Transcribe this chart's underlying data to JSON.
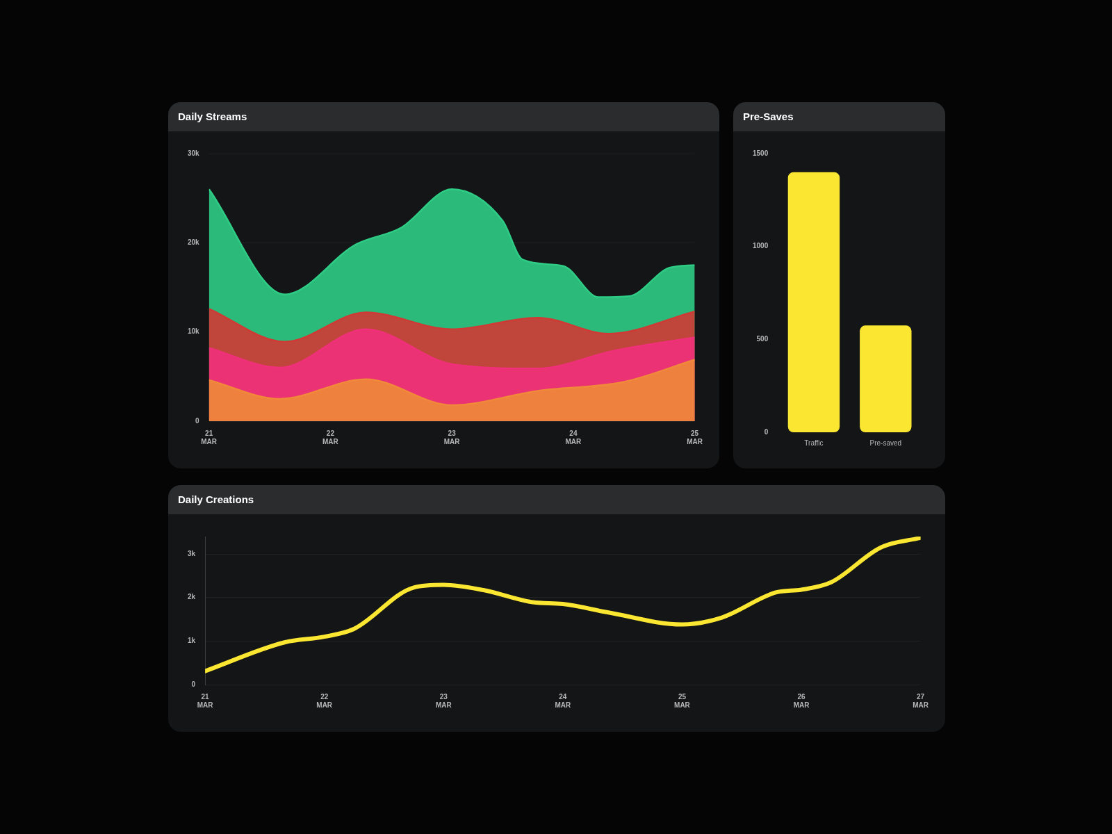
{
  "chart_data": [
    {
      "type": "area",
      "title": "Daily Streams",
      "xlim": [
        "--03-21",
        "--03-25"
      ],
      "xticks": [
        {
          "value": "--03-21",
          "label": "21 MAR"
        },
        {
          "value": "--03-22",
          "label": "22 MAR"
        },
        {
          "value": "--03-23",
          "label": "23 MAR"
        },
        {
          "value": "--03-24",
          "label": "24 MAR"
        },
        {
          "value": "--03-25",
          "label": "25 MAR"
        }
      ],
      "ylim": [
        0,
        30000
      ],
      "yticks": [
        {
          "value": 0,
          "label": "0"
        },
        {
          "value": 10000,
          "label": "10k"
        },
        {
          "value": 20000,
          "label": "20k"
        },
        {
          "value": 30000,
          "label": "30k"
        }
      ],
      "grid": "y",
      "legend": false,
      "series": [
        {
          "color": "#2ecc85",
          "x": [
            "--03-21",
            "--03-21T15:00",
            "--03-22T05:00",
            "--03-22T14:00",
            "--03-23",
            "--03-23T10:00",
            "--03-23T14:00",
            "--03-23T22:00",
            "--03-24T05:00",
            "--03-24T11:00",
            "--03-24T19:00",
            "--03-25"
          ],
          "values": [
            26000,
            14200,
            19800,
            21700,
            26000,
            22500,
            18100,
            17400,
            13900,
            14000,
            17200,
            17500
          ]
        },
        {
          "color": "#d03a35",
          "x": [
            "--03-21",
            "--03-21T15:00",
            "--03-22T07:00",
            "--03-23",
            "--03-23T17:00",
            "--03-24T07:00",
            "--03-25"
          ],
          "values": [
            12600,
            8900,
            12200,
            10300,
            11600,
            9800,
            12300
          ]
        },
        {
          "color": "#f0307a",
          "x": [
            "--03-21",
            "--03-21T14:00",
            "--03-22T07:00",
            "--03-23",
            "--03-23T17:00",
            "--03-24T08:00",
            "--03-25"
          ],
          "values": [
            8200,
            6000,
            10300,
            6400,
            5900,
            7900,
            9400
          ]
        },
        {
          "color": "#f08a3a",
          "x": [
            "--03-21",
            "--03-21T14:00",
            "--03-22T07:00",
            "--03-23",
            "--03-23T17:00",
            "--03-24T10:00",
            "--03-25"
          ],
          "values": [
            4600,
            2500,
            4700,
            1800,
            3400,
            4400,
            6900
          ]
        }
      ]
    },
    {
      "type": "bar",
      "title": "Pre-Saves",
      "categories": [
        "Traffic",
        "Pre-saved"
      ],
      "values": [
        1400,
        575
      ],
      "color": "#fbe731",
      "ylim": [
        0,
        1500
      ],
      "yticks": [
        0,
        500,
        1000,
        1500
      ],
      "grid": false,
      "legend": false
    },
    {
      "type": "line",
      "title": "Daily Creations",
      "xlim": [
        "--03-21",
        "--03-27"
      ],
      "xticks": [
        {
          "value": "--03-21",
          "label": "21 MAR"
        },
        {
          "value": "--03-22",
          "label": "22 MAR"
        },
        {
          "value": "--03-23",
          "label": "23 MAR"
        },
        {
          "value": "--03-24",
          "label": "24 MAR"
        },
        {
          "value": "--03-25",
          "label": "25 MAR"
        },
        {
          "value": "--03-26",
          "label": "26 MAR"
        },
        {
          "value": "--03-27",
          "label": "27 MAR"
        }
      ],
      "yticks": [
        {
          "value": 0,
          "label": "0"
        },
        {
          "value": 1000,
          "label": "1k"
        },
        {
          "value": 2000,
          "label": "2k"
        },
        {
          "value": 3000,
          "label": "3k"
        }
      ],
      "ylim": [
        0,
        3400
      ],
      "grid": "y",
      "legend": false,
      "marker": "none",
      "series": [
        {
          "color": "#fbe731",
          "x": [
            "--03-21",
            "--03-21T16:00",
            "--03-22",
            "--03-22T06:00",
            "--03-22T18:00",
            "--03-23",
            "--03-23T08:00",
            "--03-23T18:00",
            "--03-24",
            "--03-24T09:00",
            "--03-25",
            "--03-25T08:00",
            "--03-25T19:00",
            "--03-26",
            "--03-26T06:00",
            "--03-26T16:00",
            "--03-27"
          ],
          "values": [
            310,
            970,
            1100,
            1280,
            2230,
            2290,
            2170,
            1890,
            1850,
            1660,
            1380,
            1540,
            2120,
            2180,
            2350,
            3150,
            3370
          ]
        }
      ]
    }
  ]
}
